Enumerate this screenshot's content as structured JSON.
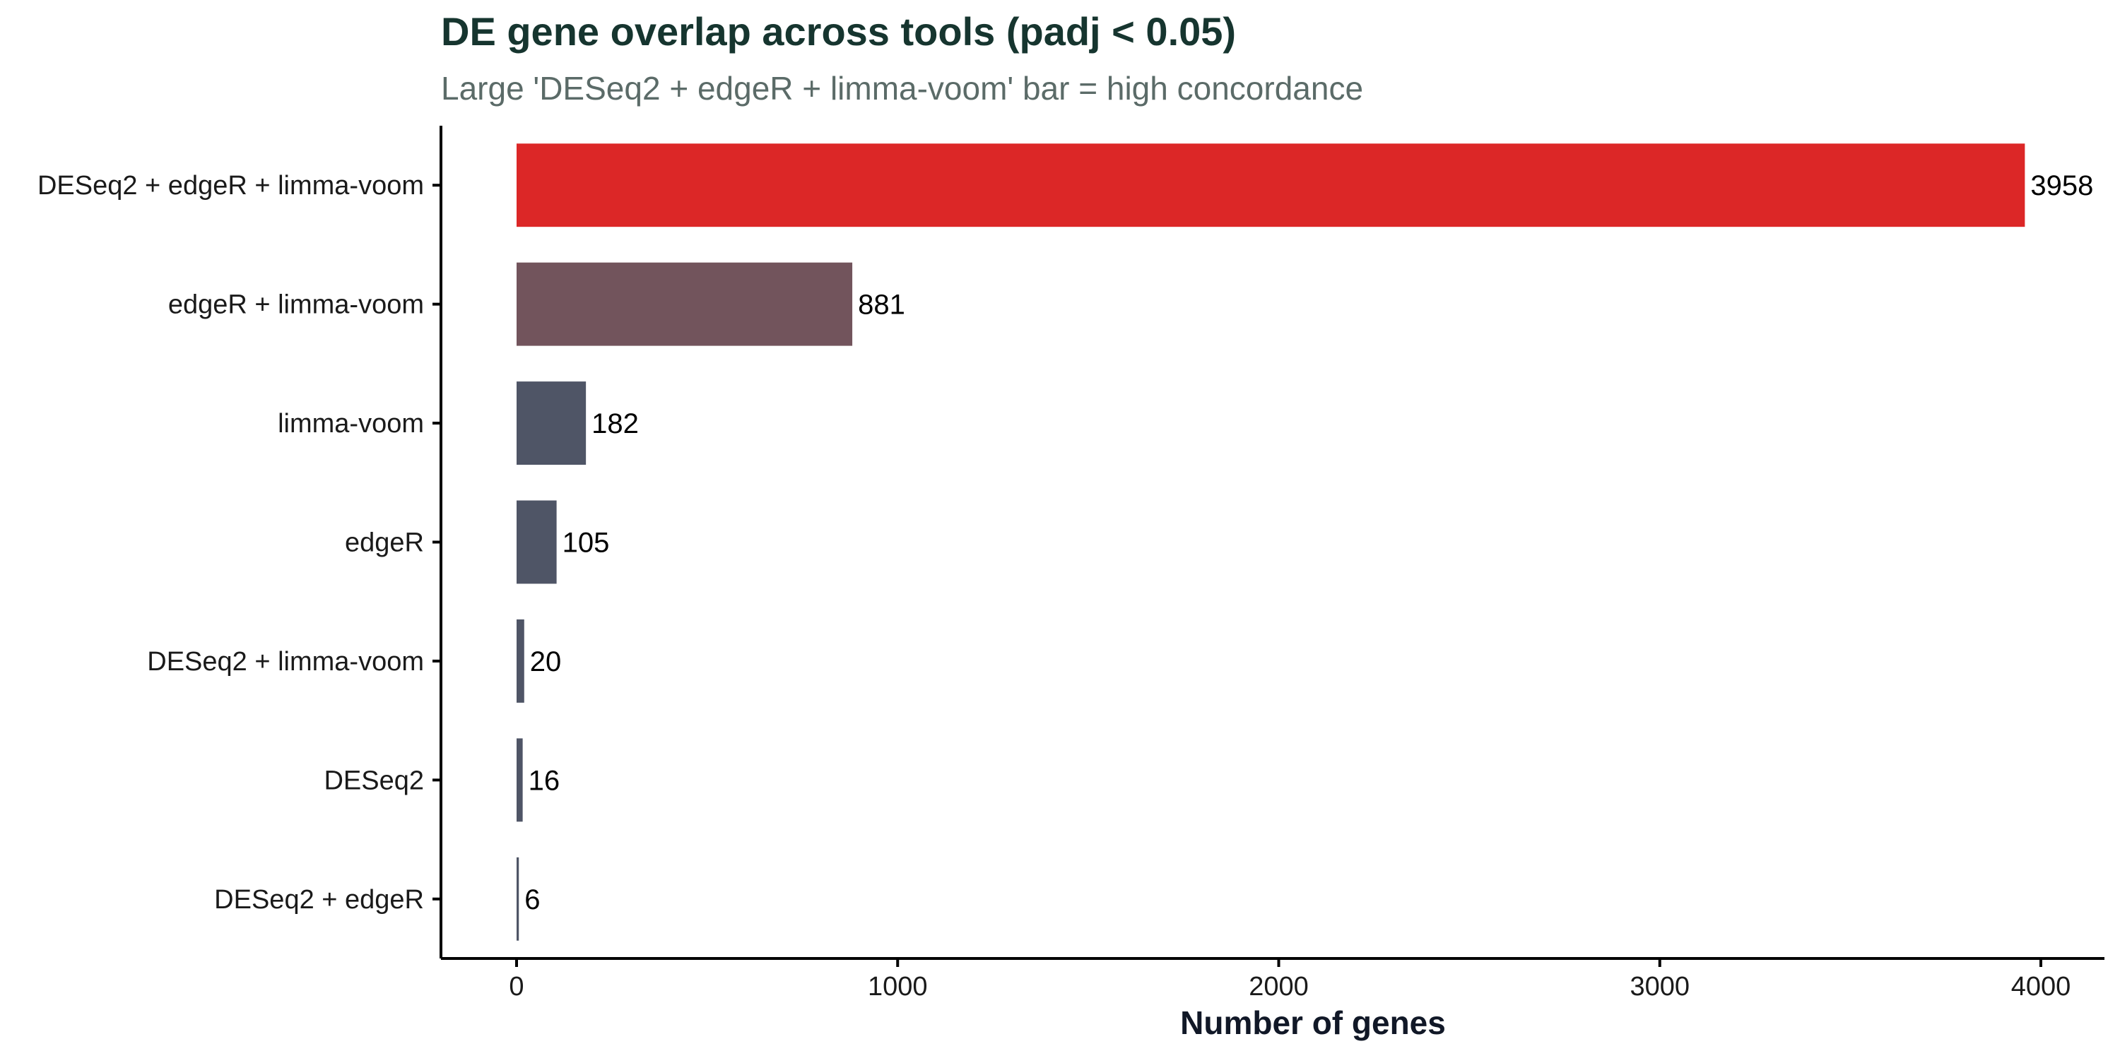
{
  "chart_data": {
    "type": "bar",
    "orientation": "horizontal",
    "title": "DE gene overlap across tools (padj < 0.05)",
    "subtitle": "Large 'DESeq2 + edgeR + limma-voom' bar = high concordance",
    "xlabel": "Number of genes",
    "ylabel": "",
    "categories": [
      "DESeq2 + edgeR + limma-voom",
      "edgeR + limma-voom",
      "limma-voom",
      "edgeR",
      "DESeq2 + limma-voom",
      "DESeq2",
      "DESeq2 + edgeR"
    ],
    "values": [
      3958,
      881,
      182,
      105,
      20,
      16,
      6
    ],
    "bar_colors": [
      "#dc2727",
      "#72545c",
      "#4f5566",
      "#4f5566",
      "#4f5566",
      "#4f5566",
      "#4f5566"
    ],
    "xlim": [
      -200,
      4150
    ],
    "xticks": [
      0,
      1000,
      2000,
      3000,
      4000
    ],
    "grid": false,
    "legend": "none"
  },
  "colors": {
    "title": "#16352f",
    "subtitle": "#5b6b68",
    "axis": "#000000",
    "highlight": "#dc2727",
    "secondary": "#72545c",
    "base": "#4f5566"
  }
}
